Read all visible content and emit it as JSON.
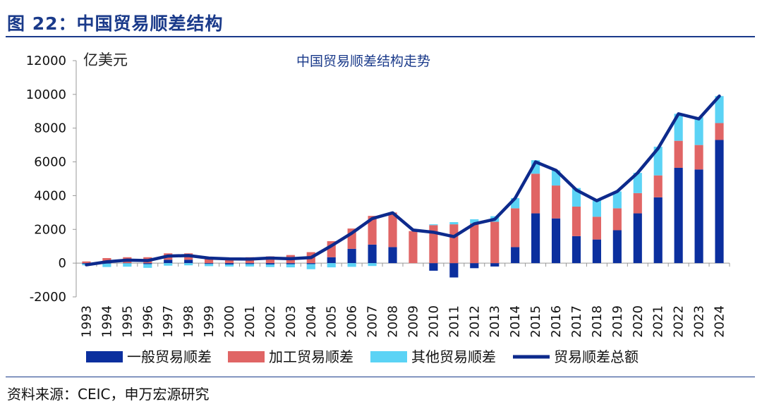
{
  "figure": {
    "title": "图 22：中国贸易顺差结构",
    "source": "资料来源：CEIC，申万宏源研究"
  },
  "colors": {
    "general": "#0b2f9e",
    "processing": "#e06565",
    "other": "#5bd3f5",
    "total": "#0d2a8c",
    "title": "#1a3a8a"
  },
  "chart_data": {
    "type": "bar",
    "stacked": true,
    "title": "中国贸易顺差结构走势",
    "ylabel": "亿美元",
    "ylim": [
      -2000,
      12000
    ],
    "yticks": [
      "-2000",
      "0",
      "2000",
      "4000",
      "6000",
      "8000",
      "10000",
      "12000"
    ],
    "categories": [
      "1993",
      "1994",
      "1995",
      "1996",
      "1997",
      "1998",
      "1999",
      "2000",
      "2001",
      "2002",
      "2003",
      "2004",
      "2005",
      "2006",
      "2007",
      "2008",
      "2009",
      "2010",
      "2011",
      "2012",
      "2013",
      "2014",
      "2015",
      "2016",
      "2017",
      "2018",
      "2019",
      "2020",
      "2021",
      "2022",
      "2023",
      "2024"
    ],
    "series": [
      {
        "name": "一般贸易顺差",
        "kind": "bar",
        "values": [
          -50,
          -30,
          -10,
          -60,
          200,
          200,
          -50,
          -80,
          -60,
          -80,
          -70,
          -60,
          350,
          850,
          1100,
          950,
          0,
          -450,
          -850,
          -300,
          -200,
          950,
          2950,
          2650,
          1600,
          1400,
          1950,
          2950,
          3900,
          5650,
          5550,
          7300
        ]
      },
      {
        "name": "加工贸易顺差",
        "kind": "bar",
        "values": [
          100,
          300,
          350,
          350,
          380,
          380,
          350,
          320,
          350,
          400,
          480,
          650,
          950,
          1200,
          1700,
          2050,
          1900,
          2250,
          2300,
          2350,
          2450,
          2300,
          2350,
          1950,
          1750,
          1350,
          1300,
          1200,
          1300,
          1600,
          1450,
          1000
        ]
      },
      {
        "name": "其他贸易顺差",
        "kind": "bar",
        "values": [
          -80,
          -200,
          -200,
          -220,
          -150,
          -130,
          -130,
          -120,
          -140,
          -150,
          -180,
          -300,
          -250,
          -220,
          -170,
          0,
          0,
          50,
          130,
          250,
          330,
          600,
          800,
          900,
          1100,
          950,
          1000,
          1200,
          1700,
          1600,
          1650,
          1600
        ]
      },
      {
        "name": "贸易顺差总额",
        "kind": "line",
        "values": [
          -100,
          80,
          180,
          150,
          420,
          450,
          300,
          250,
          240,
          300,
          260,
          330,
          1030,
          1780,
          2640,
          2980,
          1960,
          1830,
          1570,
          2330,
          2600,
          3850,
          6000,
          5500,
          4330,
          3700,
          4250,
          5350,
          6800,
          8850,
          8550,
          9900
        ]
      }
    ]
  }
}
